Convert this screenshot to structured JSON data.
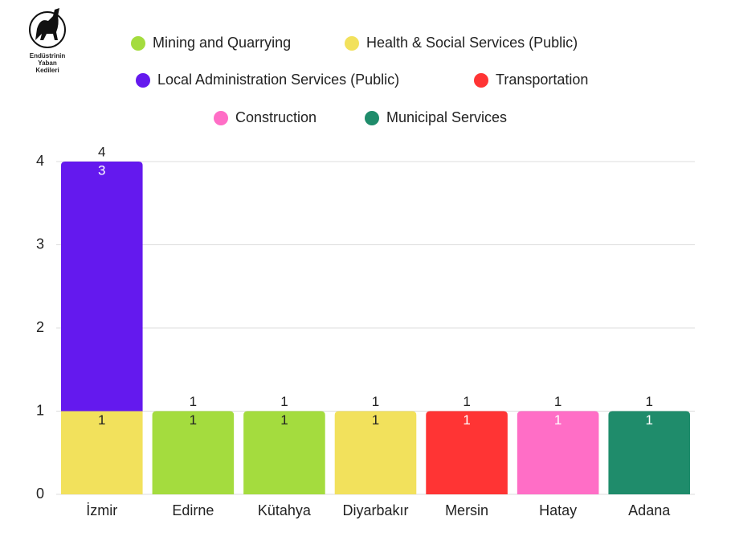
{
  "logo": {
    "lines": [
      "Endüstrinin",
      "Yaban",
      "Kedileri"
    ]
  },
  "chart_data": {
    "type": "stacked-bar",
    "categories": [
      "İzmir",
      "Edirne",
      "Kütahya",
      "Diyarbakır",
      "Mersin",
      "Hatay",
      "Adana"
    ],
    "series": [
      {
        "name": "Mining and Quarrying",
        "color": "#a4dc3e",
        "values": [
          null,
          1,
          1,
          null,
          null,
          null,
          null
        ]
      },
      {
        "name": "Health & Social Services (Public)",
        "color": "#f2e15c",
        "values": [
          1,
          null,
          null,
          1,
          null,
          null,
          null
        ]
      },
      {
        "name": "Local Administration Services (Public)",
        "color": "#6419ee",
        "values": [
          3,
          null,
          null,
          null,
          null,
          null,
          null
        ]
      },
      {
        "name": "Transportation",
        "color": "#ff3434",
        "values": [
          null,
          null,
          null,
          null,
          1,
          null,
          null
        ]
      },
      {
        "name": "Construction",
        "color": "#ff6ec6",
        "values": [
          null,
          null,
          null,
          null,
          null,
          1,
          null
        ]
      },
      {
        "name": "Municipal Services",
        "color": "#1f8c6b",
        "values": [
          null,
          null,
          null,
          null,
          null,
          null,
          1
        ]
      }
    ],
    "totals": [
      4,
      1,
      1,
      1,
      1,
      1,
      1
    ],
    "ylim": [
      0,
      4
    ],
    "yticks": [
      0,
      1,
      2,
      3,
      4
    ],
    "grid": true
  }
}
